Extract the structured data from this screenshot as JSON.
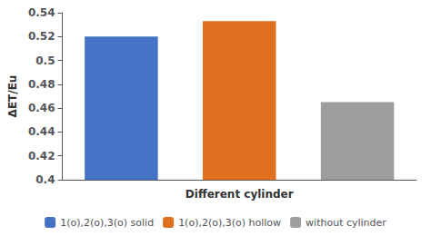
{
  "chart_data": {
    "type": "bar",
    "xlabel": "Different cylinder",
    "ylabel": "ΔET/Eu",
    "categories": [
      "1(o),2(o),3(o) solid",
      "1(o),2(o),3(o) hollow",
      "without cylinder"
    ],
    "values": [
      0.52,
      0.533,
      0.465
    ],
    "colors": [
      "#4472C4",
      "#E07020",
      "#9E9E9E"
    ],
    "ylim": [
      0.4,
      0.54
    ],
    "yticks": [
      0.4,
      0.42,
      0.44,
      0.46,
      0.48,
      0.5,
      0.52,
      0.54
    ],
    "grid": false,
    "legend": "bottom",
    "tick_labels": "y"
  }
}
